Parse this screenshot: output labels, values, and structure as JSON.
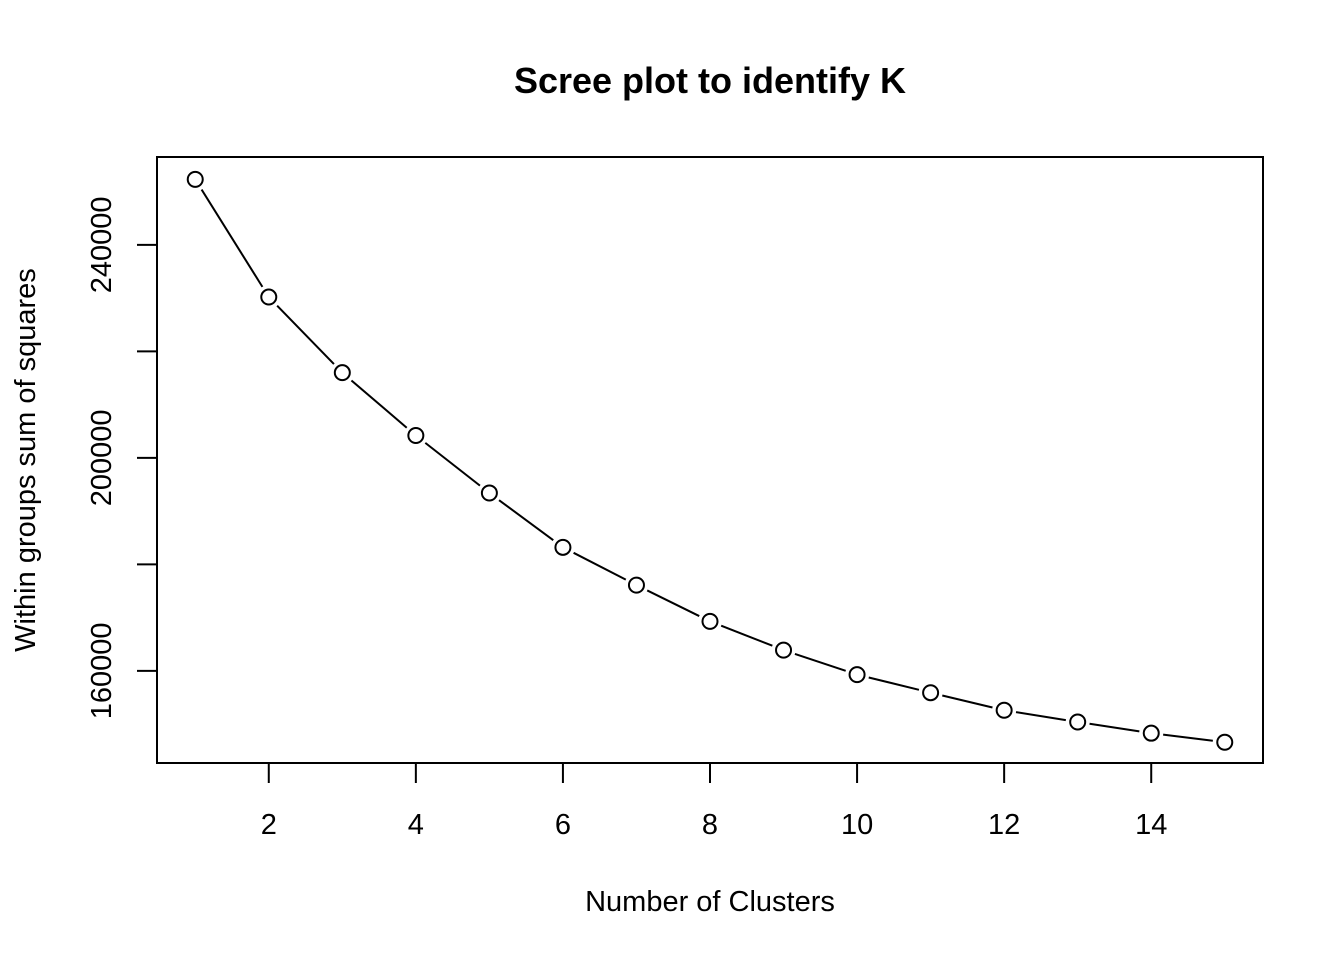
{
  "chart_data": {
    "type": "line",
    "title": "Scree plot to identify K",
    "xlabel": "Number of Clusters",
    "ylabel": "Within groups sum of squares",
    "x": [
      1,
      2,
      3,
      4,
      5,
      6,
      7,
      8,
      9,
      10,
      11,
      12,
      13,
      14,
      15
    ],
    "series": [
      {
        "values": [
          252300,
          230200,
          216000,
          204200,
          193400,
          183200,
          176100,
          169300,
          163900,
          159300,
          155900,
          152600,
          150400,
          148300,
          146600
        ]
      }
    ],
    "xlim": [
      0.48,
      15.52
    ],
    "ylim": [
      142700,
      256500
    ],
    "x_ticks": [
      "2",
      "4",
      "6",
      "8",
      "10",
      "12",
      "14"
    ],
    "y_ticks": [
      "160000",
      "200000",
      "240000"
    ],
    "y_minor_ticks": [
      180000,
      220000
    ],
    "markers": "open-circle",
    "grid": false,
    "legend": "none"
  }
}
